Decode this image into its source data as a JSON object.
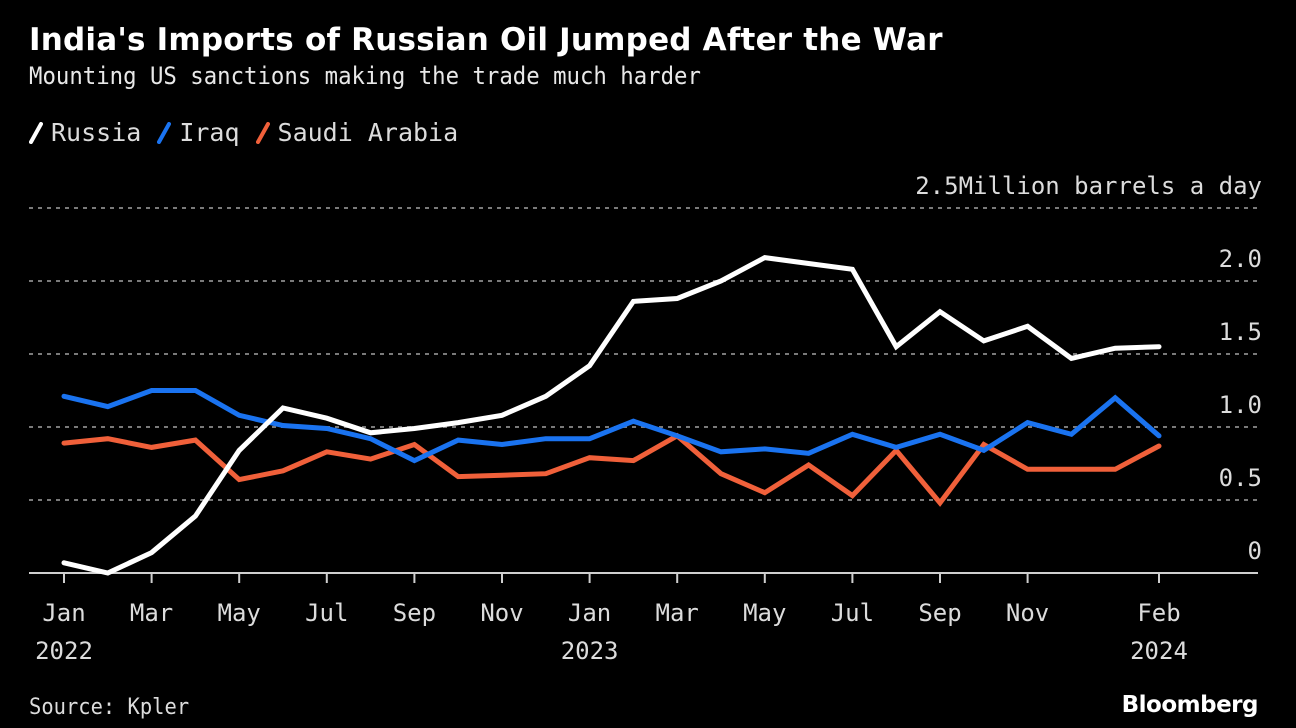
{
  "header": {
    "title": "India's Imports of Russian Oil Jumped After the War",
    "subtitle": "Mounting US sanctions making the trade much harder"
  },
  "legend": [
    {
      "label": "Russia",
      "color": "#ffffff"
    },
    {
      "label": "Iraq",
      "color": "#1a73f0"
    },
    {
      "label": "Saudi Arabia",
      "color": "#f0603a"
    }
  ],
  "footer": {
    "source": "Source: Kpler",
    "brand": "Bloomberg"
  },
  "chart_data": {
    "type": "line",
    "title": "India's Imports of Russian Oil Jumped After the War",
    "subtitle": "Mounting US sanctions making the trade much harder",
    "ylabel": "Million barrels a day",
    "xlabel": "",
    "ylim": [
      0,
      2.5
    ],
    "y_ticks": [
      {
        "value": 2.5,
        "label": "2.5Million barrels a day"
      },
      {
        "value": 2.0,
        "label": "2.0"
      },
      {
        "value": 1.5,
        "label": "1.5"
      },
      {
        "value": 1.0,
        "label": "1.0"
      },
      {
        "value": 0.5,
        "label": "0.5"
      },
      {
        "value": 0,
        "label": "0"
      }
    ],
    "grid": true,
    "legend_position": "top-left",
    "x": [
      "2022-01",
      "2022-02",
      "2022-03",
      "2022-04",
      "2022-05",
      "2022-06",
      "2022-07",
      "2022-08",
      "2022-09",
      "2022-10",
      "2022-11",
      "2022-12",
      "2023-01",
      "2023-02",
      "2023-03",
      "2023-04",
      "2023-05",
      "2023-06",
      "2023-07",
      "2023-08",
      "2023-09",
      "2023-10",
      "2023-11",
      "2023-12",
      "2024-01",
      "2024-02"
    ],
    "x_ticks": [
      {
        "index": 0,
        "label": "Jan",
        "year": "2022"
      },
      {
        "index": 2,
        "label": "Mar",
        "year": ""
      },
      {
        "index": 4,
        "label": "May",
        "year": ""
      },
      {
        "index": 6,
        "label": "Jul",
        "year": ""
      },
      {
        "index": 8,
        "label": "Sep",
        "year": ""
      },
      {
        "index": 10,
        "label": "Nov",
        "year": ""
      },
      {
        "index": 12,
        "label": "Jan",
        "year": "2023"
      },
      {
        "index": 14,
        "label": "Mar",
        "year": ""
      },
      {
        "index": 16,
        "label": "May",
        "year": ""
      },
      {
        "index": 18,
        "label": "Jul",
        "year": ""
      },
      {
        "index": 20,
        "label": "Sep",
        "year": ""
      },
      {
        "index": 22,
        "label": "Nov",
        "year": ""
      },
      {
        "index": 25,
        "label": "Feb",
        "year": "2024"
      }
    ],
    "series": [
      {
        "name": "Russia",
        "color": "#ffffff",
        "values": [
          0.07,
          0.0,
          0.14,
          0.39,
          0.84,
          1.13,
          1.06,
          0.96,
          0.99,
          1.03,
          1.08,
          1.21,
          1.42,
          1.86,
          1.88,
          2.0,
          2.16,
          2.12,
          2.08,
          1.55,
          1.79,
          1.59,
          1.69,
          1.47,
          1.54,
          1.55
        ]
      },
      {
        "name": "Iraq",
        "color": "#1a73f0",
        "values": [
          1.21,
          1.14,
          1.25,
          1.25,
          1.08,
          1.01,
          0.99,
          0.92,
          0.77,
          0.91,
          0.88,
          0.92,
          0.92,
          1.04,
          0.94,
          0.83,
          0.85,
          0.82,
          0.95,
          0.86,
          0.95,
          0.84,
          1.03,
          0.95,
          1.2,
          0.94
        ]
      },
      {
        "name": "Saudi Arabia",
        "color": "#f0603a",
        "values": [
          0.89,
          0.92,
          0.86,
          0.91,
          0.64,
          0.7,
          0.83,
          0.78,
          0.88,
          0.66,
          0.67,
          0.68,
          0.79,
          0.77,
          0.94,
          0.68,
          0.55,
          0.74,
          0.53,
          0.84,
          0.48,
          0.88,
          0.71,
          0.71,
          0.71,
          0.87
        ]
      }
    ]
  }
}
